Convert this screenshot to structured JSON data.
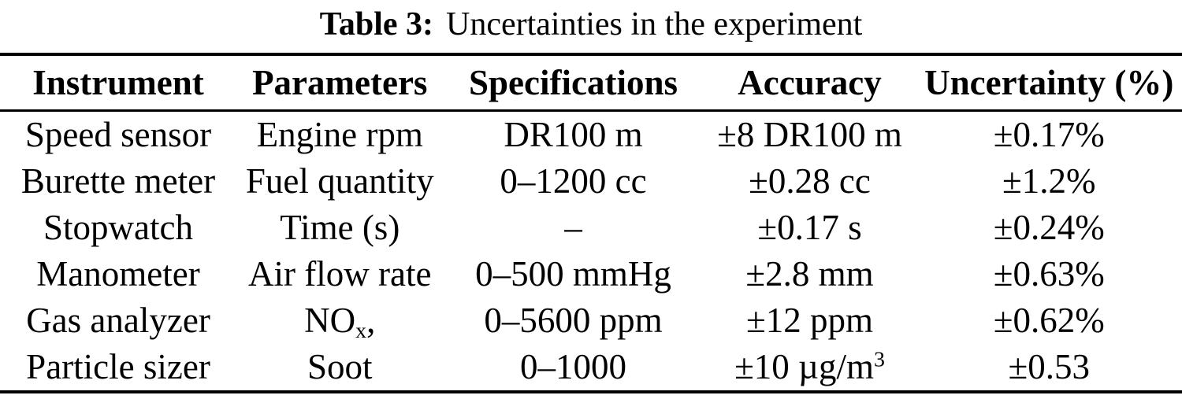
{
  "caption": {
    "label": "Table 3:",
    "text": "Uncertainties in the experiment"
  },
  "table": {
    "headers": [
      "Instrument",
      "Parameters",
      "Specifications",
      "Accuracy",
      "Uncertainty (%)"
    ],
    "rows": [
      {
        "instrument": "Speed sensor",
        "parameters": "Engine rpm",
        "specifications": "DR100 m",
        "accuracy": "±8 DR100 m",
        "uncertainty": "±0.17%"
      },
      {
        "instrument": "Burette meter",
        "parameters": "Fuel quantity",
        "specifications": "0–1200 cc",
        "accuracy": "±0.28 cc",
        "uncertainty": "±1.2%"
      },
      {
        "instrument": "Stopwatch",
        "parameters": "Time (s)",
        "specifications": "–",
        "accuracy": "±0.17 s",
        "uncertainty": "±0.24%"
      },
      {
        "instrument": "Manometer",
        "parameters": "Air flow rate",
        "specifications": "0–500 mmHg",
        "accuracy": "±2.8 mm",
        "uncertainty": "±0.63%"
      },
      {
        "instrument": "Gas analyzer",
        "parameters_base": "NO",
        "parameters_sub": "x",
        "parameters_tail": ",",
        "specifications": "0–5600 ppm",
        "accuracy": "±12 ppm",
        "uncertainty": "±0.62%"
      },
      {
        "instrument": "Particle sizer",
        "parameters": "Soot",
        "specifications": "0–1000",
        "accuracy_base": "±10 µg/m",
        "accuracy_sup": "3",
        "uncertainty": "±0.53"
      }
    ]
  }
}
